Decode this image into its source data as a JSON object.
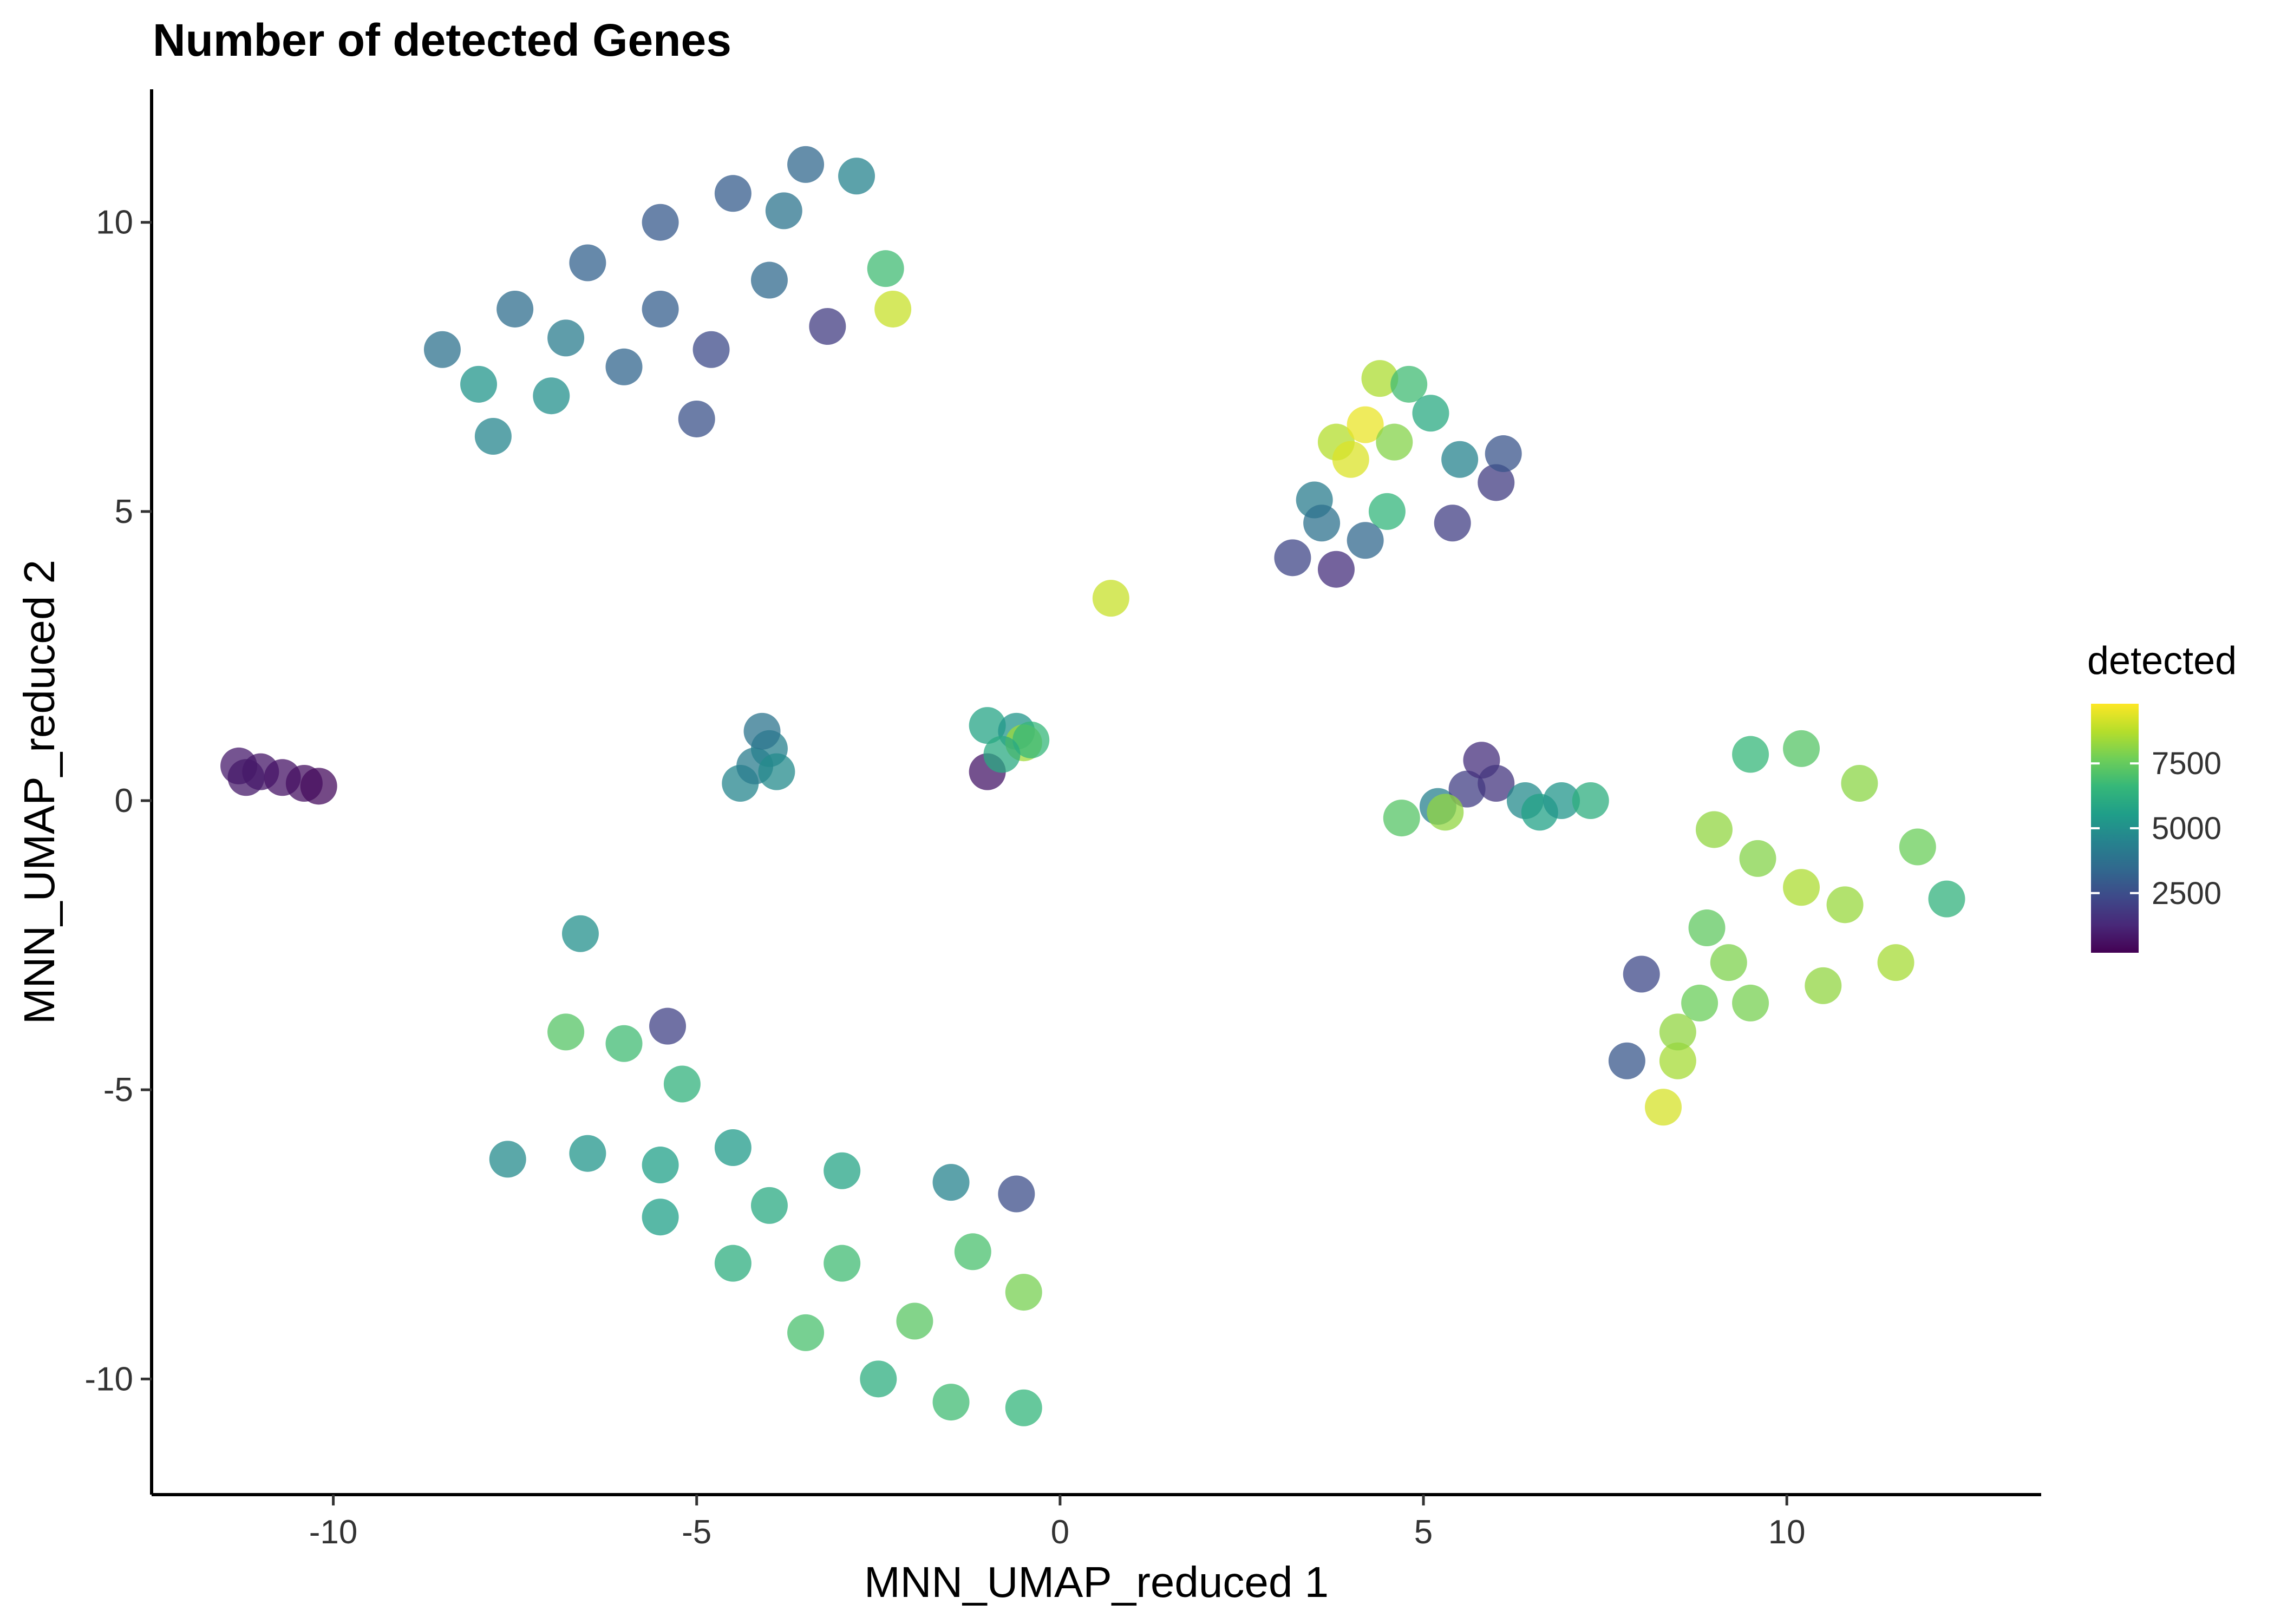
{
  "chart_data": {
    "type": "scatter",
    "title": "Number of detected Genes",
    "xlabel": "MNN_UMAP_reduced 1",
    "ylabel": "MNN_UMAP_reduced 2",
    "xlim": [
      -12.5,
      13.5
    ],
    "ylim": [
      -12,
      12.3
    ],
    "xticks": [
      -10,
      -5,
      0,
      5,
      10
    ],
    "xtick_labels": [
      "-10",
      "-5",
      "0",
      "5",
      "10"
    ],
    "yticks": [
      -10,
      -5,
      0,
      5,
      10
    ],
    "ytick_labels": [
      "-10",
      "-5",
      "0",
      "5",
      "10"
    ],
    "grid": false,
    "legend": {
      "title": "detected",
      "placement": "right",
      "range": [
        200,
        9800
      ],
      "ticks": [
        2500,
        5000,
        7500
      ],
      "tick_labels": [
        "2500",
        "5000",
        "7500"
      ],
      "colormap": "viridis",
      "colors": [
        "#440154",
        "#482878",
        "#3e4989",
        "#31688e",
        "#26828e",
        "#1f9e89",
        "#35b779",
        "#6ece58",
        "#b5de2b",
        "#fde725"
      ]
    },
    "clusters": [
      {
        "label": "top-left",
        "points": [
          [
            -8.5,
            7.8
          ],
          [
            -7.5,
            8.5
          ],
          [
            -6.5,
            9.3
          ],
          [
            -5.5,
            10.0
          ],
          [
            -4.5,
            10.5
          ],
          [
            -3.5,
            11.0
          ],
          [
            -2.8,
            10.8
          ],
          [
            -2.4,
            9.2
          ],
          [
            -2.3,
            8.5
          ],
          [
            -7.8,
            6.3
          ],
          [
            -7.0,
            7.0
          ],
          [
            -6.0,
            7.5
          ],
          [
            -5.0,
            6.6
          ],
          [
            -5.5,
            8.5
          ],
          [
            -4.0,
            9.0
          ],
          [
            -3.2,
            8.2
          ],
          [
            -6.8,
            8.0
          ],
          [
            -4.8,
            7.8
          ],
          [
            -8.0,
            7.2
          ],
          [
            -3.8,
            10.2
          ]
        ],
        "values": [
          3800,
          3600,
          3200,
          2900,
          3000,
          3400,
          4500,
          6800,
          9000,
          4600,
          5000,
          3300,
          2600,
          3100,
          3500,
          1900,
          4200,
          2400,
          5200,
          3900
        ]
      },
      {
        "label": "top-right",
        "points": [
          [
            3.2,
            4.2
          ],
          [
            3.5,
            5.2
          ],
          [
            3.8,
            6.2
          ],
          [
            4.2,
            6.5
          ],
          [
            4.4,
            7.3
          ],
          [
            4.8,
            7.2
          ],
          [
            5.1,
            6.7
          ],
          [
            5.5,
            5.9
          ],
          [
            6.0,
            5.5
          ],
          [
            6.1,
            6.0
          ],
          [
            4.0,
            5.9
          ],
          [
            4.5,
            5.0
          ],
          [
            4.2,
            4.5
          ],
          [
            5.4,
            4.8
          ],
          [
            3.8,
            4.0
          ],
          [
            4.6,
            6.2
          ],
          [
            3.6,
            4.8
          ]
        ],
        "values": [
          2200,
          4200,
          8700,
          9500,
          8600,
          6800,
          6000,
          4500,
          1900,
          2700,
          9300,
          6500,
          3400,
          2000,
          1500,
          8000,
          3800
        ]
      },
      {
        "label": "bottom-left",
        "points": [
          [
            -7.6,
            -6.2
          ],
          [
            -6.5,
            -6.1
          ],
          [
            -5.5,
            -6.3
          ],
          [
            -4.5,
            -6.0
          ],
          [
            -3.0,
            -6.4
          ],
          [
            -1.5,
            -6.6
          ],
          [
            -0.6,
            -6.8
          ],
          [
            -0.5,
            -8.5
          ],
          [
            -0.5,
            -10.5
          ],
          [
            -1.5,
            -10.4
          ],
          [
            -2.5,
            -10.0
          ],
          [
            -3.5,
            -9.2
          ],
          [
            -4.5,
            -8.0
          ],
          [
            -5.5,
            -7.2
          ],
          [
            -3.0,
            -8.0
          ],
          [
            -2.0,
            -9.0
          ],
          [
            -1.2,
            -7.8
          ],
          [
            -4.0,
            -7.0
          ],
          [
            -6.8,
            -4.0
          ],
          [
            -6.6,
            -2.3
          ],
          [
            -5.4,
            -3.9
          ],
          [
            -6.0,
            -4.2
          ],
          [
            -5.2,
            -4.9
          ]
        ],
        "values": [
          4800,
          5200,
          5600,
          5400,
          5800,
          4500,
          2500,
          7800,
          6500,
          6800,
          6200,
          7000,
          6200,
          5600,
          6800,
          7300,
          7000,
          6000,
          7200,
          5000,
          2100,
          6800,
          6400
        ]
      },
      {
        "label": "right",
        "points": [
          [
            8.0,
            -3.0
          ],
          [
            7.8,
            -4.5
          ],
          [
            8.3,
            -5.3
          ],
          [
            8.5,
            -4.5
          ],
          [
            8.8,
            -3.5
          ],
          [
            8.9,
            -2.2
          ],
          [
            9.0,
            -0.5
          ],
          [
            9.5,
            0.8
          ],
          [
            10.2,
            0.9
          ],
          [
            11.0,
            0.3
          ],
          [
            11.8,
            -0.8
          ],
          [
            12.2,
            -1.7
          ],
          [
            11.5,
            -2.8
          ],
          [
            10.5,
            -3.2
          ],
          [
            9.5,
            -3.5
          ],
          [
            10.2,
            -1.5
          ],
          [
            9.6,
            -1.0
          ],
          [
            10.8,
            -1.8
          ],
          [
            8.5,
            -4.0
          ],
          [
            9.2,
            -2.8
          ]
        ],
        "values": [
          2300,
          2800,
          9200,
          8500,
          7600,
          7400,
          8200,
          6600,
          7200,
          8100,
          7600,
          6400,
          8500,
          8200,
          7800,
          8600,
          8000,
          8300,
          8200,
          7900
        ]
      },
      {
        "label": "far-left",
        "points": [
          [
            -11.3,
            0.6
          ],
          [
            -11.0,
            0.5
          ],
          [
            -10.7,
            0.4
          ],
          [
            -10.4,
            0.3
          ],
          [
            -10.2,
            0.25
          ],
          [
            -11.2,
            0.4
          ]
        ],
        "values": [
          900,
          800,
          700,
          600,
          500,
          850
        ]
      },
      {
        "label": "small-left",
        "points": [
          [
            -4.4,
            0.3
          ],
          [
            -4.2,
            0.6
          ],
          [
            -4.0,
            0.9
          ],
          [
            -4.1,
            1.2
          ],
          [
            -3.9,
            0.5
          ]
        ],
        "values": [
          4600,
          4200,
          4400,
          3900,
          4800
        ]
      },
      {
        "label": "small-center",
        "points": [
          [
            -1.0,
            1.3
          ],
          [
            -0.6,
            1.2
          ],
          [
            -0.5,
            1.0
          ],
          [
            -0.4,
            1.05
          ],
          [
            -1.0,
            0.5
          ],
          [
            -0.8,
            0.8
          ]
        ],
        "values": [
          5800,
          5200,
          8400,
          6600,
          800,
          6000
        ]
      },
      {
        "label": "singleton",
        "points": [
          [
            0.7,
            3.5
          ]
        ],
        "values": [
          9000
        ]
      },
      {
        "label": "small-right",
        "points": [
          [
            4.7,
            -0.3
          ],
          [
            5.2,
            -0.1
          ],
          [
            5.6,
            0.2
          ],
          [
            5.8,
            0.7
          ],
          [
            6.0,
            0.3
          ],
          [
            6.4,
            0.0
          ],
          [
            6.6,
            -0.2
          ],
          [
            6.9,
            0.0
          ],
          [
            7.3,
            0.0
          ],
          [
            5.3,
            -0.2
          ]
        ],
        "values": [
          7200,
          4400,
          2000,
          1500,
          1700,
          4800,
          5700,
          5200,
          6200,
          8200
        ]
      }
    ]
  }
}
